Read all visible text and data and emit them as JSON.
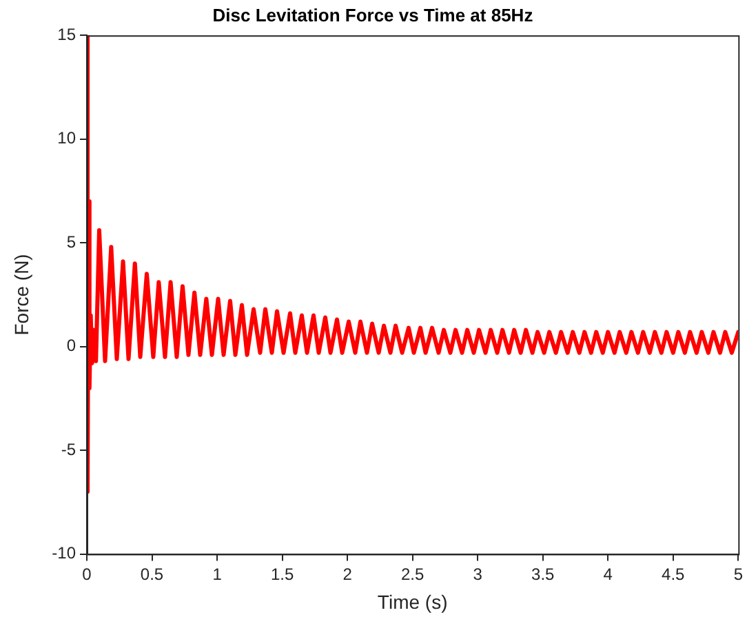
{
  "chart_data": {
    "type": "line",
    "title": "Disc Levitation Force vs Time at 85Hz",
    "xlabel": "Time (s)",
    "ylabel": "Force (N)",
    "xlim": [
      0,
      5
    ],
    "xticks": [
      0,
      0.5,
      1,
      1.5,
      2,
      2.5,
      3,
      3.5,
      4,
      4.5,
      5
    ],
    "ylim": [
      -10,
      15
    ],
    "yticks": [
      -10,
      -5,
      0,
      5,
      10,
      15
    ],
    "grid": false,
    "legend": false,
    "marker": "none",
    "line_style": "solid",
    "series": [
      {
        "color": "#ff0000",
        "x": [
          0,
          0.003,
          0.008,
          0.013,
          0.02,
          0.03,
          0.04,
          0.05,
          0.07,
          0.095,
          0.14,
          0.187,
          0.23,
          0.278,
          0.32,
          0.369,
          0.41,
          0.46,
          0.51,
          0.552,
          0.6,
          0.643,
          0.69,
          0.735,
          0.78,
          0.826,
          0.87,
          0.917,
          0.96,
          1.008,
          1.05,
          1.1,
          1.14,
          1.19,
          1.23,
          1.28,
          1.33,
          1.37,
          1.42,
          1.46,
          1.51,
          1.56,
          1.6,
          1.65,
          1.69,
          1.74,
          1.78,
          1.83,
          1.87,
          1.92,
          1.96,
          2.01,
          2.06,
          2.1,
          2.15,
          2.19,
          2.24,
          2.28,
          2.33,
          2.37,
          2.42,
          2.47,
          2.51,
          2.56,
          2.6,
          2.65,
          2.7,
          2.74,
          2.79,
          2.83,
          2.88,
          2.92,
          2.97,
          3.01,
          3.06,
          3.1,
          3.15,
          3.19,
          3.24,
          3.28,
          3.33,
          3.37,
          3.42,
          3.46,
          3.51,
          3.55,
          3.6,
          3.64,
          3.69,
          3.73,
          3.78,
          3.82,
          3.87,
          3.91,
          3.96,
          4.0,
          4.05,
          4.09,
          4.14,
          4.18,
          4.23,
          4.27,
          4.32,
          4.36,
          4.41,
          4.45,
          4.5,
          4.54,
          4.59,
          4.63,
          4.68,
          4.72,
          4.77,
          4.81,
          4.86,
          4.9,
          4.95,
          5.0
        ],
        "values": [
          0,
          15,
          -7,
          7,
          -2,
          1.5,
          -0.8,
          0.8,
          -0.7,
          5.6,
          -0.7,
          4.8,
          -0.6,
          4.1,
          -0.6,
          4.0,
          -0.5,
          3.5,
          -0.5,
          3.1,
          -0.5,
          3.1,
          -0.5,
          2.9,
          -0.4,
          2.6,
          -0.4,
          2.3,
          -0.4,
          2.3,
          -0.4,
          2.2,
          -0.4,
          2.0,
          -0.4,
          1.8,
          -0.3,
          1.8,
          -0.3,
          1.7,
          -0.3,
          1.6,
          -0.3,
          1.5,
          -0.3,
          1.5,
          -0.3,
          1.4,
          -0.3,
          1.3,
          -0.3,
          1.2,
          -0.3,
          1.2,
          -0.3,
          1.1,
          -0.3,
          1.0,
          -0.3,
          1.0,
          -0.3,
          0.9,
          -0.3,
          0.9,
          -0.3,
          0.9,
          -0.3,
          0.8,
          -0.3,
          0.8,
          -0.3,
          0.8,
          -0.3,
          0.8,
          -0.3,
          0.8,
          -0.3,
          0.8,
          -0.3,
          0.8,
          -0.3,
          0.8,
          -0.3,
          0.7,
          -0.3,
          0.7,
          -0.3,
          0.7,
          -0.3,
          0.7,
          -0.3,
          0.7,
          -0.3,
          0.7,
          -0.3,
          0.7,
          -0.3,
          0.7,
          -0.3,
          0.7,
          -0.3,
          0.7,
          -0.3,
          0.7,
          -0.3,
          0.7,
          -0.3,
          0.7,
          -0.3,
          0.7,
          -0.3,
          0.7,
          -0.3,
          0.7,
          -0.3,
          0.7,
          -0.3,
          0.7
        ]
      }
    ]
  }
}
